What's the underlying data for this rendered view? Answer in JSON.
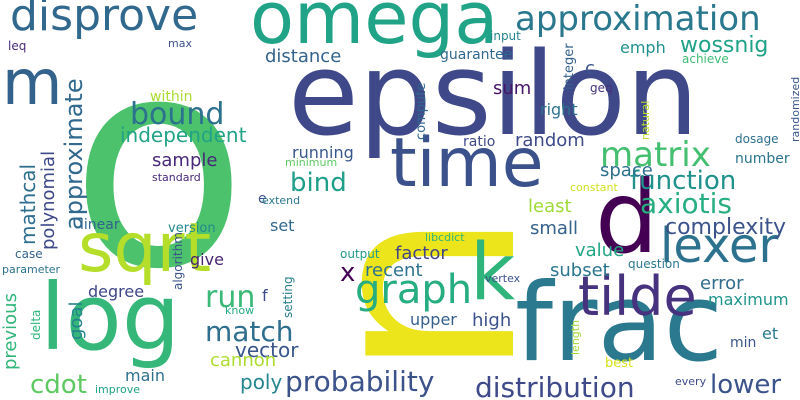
{
  "words": [
    {
      "text": "n",
      "color": "#ece51b",
      "vertical": true
    },
    {
      "text": "o",
      "color": "#4cc26c"
    },
    {
      "text": "epsilon",
      "color": "#3f4889"
    },
    {
      "text": "frac",
      "color": "#2a798e"
    },
    {
      "text": "log",
      "color": "#35b779"
    },
    {
      "text": "omega",
      "color": "#20a386"
    },
    {
      "text": "time",
      "color": "#3b518b"
    },
    {
      "text": "sqrt",
      "color": "#b5de2b"
    },
    {
      "text": "d",
      "color": "#440154"
    },
    {
      "text": "k",
      "color": "#2fb47c"
    },
    {
      "text": "m",
      "color": "#33638d"
    },
    {
      "text": "tilde",
      "color": "#46327e"
    },
    {
      "text": "disprove",
      "color": "#31688e"
    },
    {
      "text": "lexer",
      "color": "#2c728e"
    },
    {
      "text": "approximation",
      "color": "#2a788e"
    },
    {
      "text": "graph",
      "color": "#26ad81"
    },
    {
      "text": "matrix",
      "color": "#44bf70"
    },
    {
      "text": "probability",
      "color": "#3b528b"
    },
    {
      "text": "distribution",
      "color": "#3e4a89"
    },
    {
      "text": "function",
      "color": "#21918c"
    },
    {
      "text": "axiotis",
      "color": "#28ae80"
    },
    {
      "text": "bound",
      "color": "#2c728e"
    },
    {
      "text": "match",
      "color": "#2e6e8e"
    },
    {
      "text": "run",
      "color": "#3aba76"
    },
    {
      "text": "cdot",
      "color": "#5ec962"
    },
    {
      "text": "approximate",
      "color": "#31688e"
    },
    {
      "text": "wossnig",
      "color": "#1fa287"
    },
    {
      "text": "bind",
      "color": "#1f9e89"
    },
    {
      "text": "lower",
      "color": "#3a538b"
    },
    {
      "text": "complexity",
      "color": "#3b528b"
    },
    {
      "text": "x",
      "color": "#440154"
    },
    {
      "text": "poly",
      "color": "#24868e"
    },
    {
      "text": "vector",
      "color": "#39568c"
    },
    {
      "text": "mathcal",
      "color": "#2e6e8e"
    },
    {
      "text": "independent",
      "color": "#20a386"
    },
    {
      "text": "factor",
      "color": "#414487"
    },
    {
      "text": "sample",
      "color": "#482878"
    },
    {
      "text": "recent",
      "color": "#2c728e"
    },
    {
      "text": "polynomial",
      "color": "#3e4989"
    },
    {
      "text": "previous",
      "color": "#32b67a"
    },
    {
      "text": "distance",
      "color": "#33638d"
    },
    {
      "text": "space",
      "color": "#2d708e"
    },
    {
      "text": "small",
      "color": "#34618d"
    },
    {
      "text": "subset",
      "color": "#2a768e"
    },
    {
      "text": "value",
      "color": "#21a685"
    },
    {
      "text": "least",
      "color": "#a0da39"
    },
    {
      "text": "error",
      "color": "#2f6c8e"
    },
    {
      "text": "maximum",
      "color": "#1f958b"
    },
    {
      "text": "cannon",
      "color": "#addc30"
    },
    {
      "text": "upper",
      "color": "#355f8d"
    },
    {
      "text": "high",
      "color": "#3b528b"
    },
    {
      "text": "emph",
      "color": "#21918c"
    },
    {
      "text": "random",
      "color": "#3e4a89"
    },
    {
      "text": "sum",
      "color": "#481668"
    },
    {
      "text": "right",
      "color": "#2d718e"
    },
    {
      "text": "set",
      "color": "#31688e"
    },
    {
      "text": "goal",
      "color": "#25848e"
    },
    {
      "text": "main",
      "color": "#2d708e"
    },
    {
      "text": "give",
      "color": "#482475"
    },
    {
      "text": "degree",
      "color": "#3f4788"
    },
    {
      "text": "running",
      "color": "#38588c"
    },
    {
      "text": "guarantee",
      "color": "#31688e"
    },
    {
      "text": "c",
      "color": "#3a548c"
    },
    {
      "text": "f",
      "color": "#3e4a89"
    },
    {
      "text": "e",
      "color": "#3b528b"
    },
    {
      "text": "et",
      "color": "#2a788e"
    },
    {
      "text": "min",
      "color": "#39558c"
    },
    {
      "text": "within",
      "color": "#aadc32"
    },
    {
      "text": "compute",
      "color": "#31688e"
    },
    {
      "text": "integer",
      "color": "#34618d"
    },
    {
      "text": "ratio",
      "color": "#3f4889"
    },
    {
      "text": "number",
      "color": "#2b748e"
    },
    {
      "text": "linear",
      "color": "#33638d"
    },
    {
      "text": "setting",
      "color": "#287c8e"
    },
    {
      "text": "version",
      "color": "#23898e"
    },
    {
      "text": "algorithm",
      "color": "#3b528b"
    },
    {
      "text": "dosage",
      "color": "#2d708e"
    },
    {
      "text": "best",
      "color": "#d8e219"
    },
    {
      "text": "output",
      "color": "#1e9b8a"
    },
    {
      "text": "question",
      "color": "#2a788e"
    },
    {
      "text": "input",
      "color": "#25848e"
    },
    {
      "text": "geq",
      "color": "#46327e"
    },
    {
      "text": "achieve",
      "color": "#3dbc74"
    },
    {
      "text": "natural",
      "color": "#b8de29"
    },
    {
      "text": "randomized",
      "color": "#39568c"
    },
    {
      "text": "constant",
      "color": "#d0e11c"
    },
    {
      "text": "minimum",
      "color": "#5cc863"
    },
    {
      "text": "standard",
      "color": "#482878"
    },
    {
      "text": "extend",
      "color": "#2a788e"
    },
    {
      "text": "max",
      "color": "#3b528b"
    },
    {
      "text": "leq",
      "color": "#472c7a"
    },
    {
      "text": "delta",
      "color": "#2fb47c"
    },
    {
      "text": "case",
      "color": "#33638d"
    },
    {
      "text": "parameter",
      "color": "#2c728e"
    },
    {
      "text": "know",
      "color": "#25ab82"
    },
    {
      "text": "improve",
      "color": "#20a386"
    },
    {
      "text": "libcdict",
      "color": "#2fb47c"
    },
    {
      "text": "vertex",
      "color": "#3b528b"
    },
    {
      "text": "length",
      "color": "#a5db36"
    },
    {
      "text": "every",
      "color": "#3e4a89"
    }
  ]
}
